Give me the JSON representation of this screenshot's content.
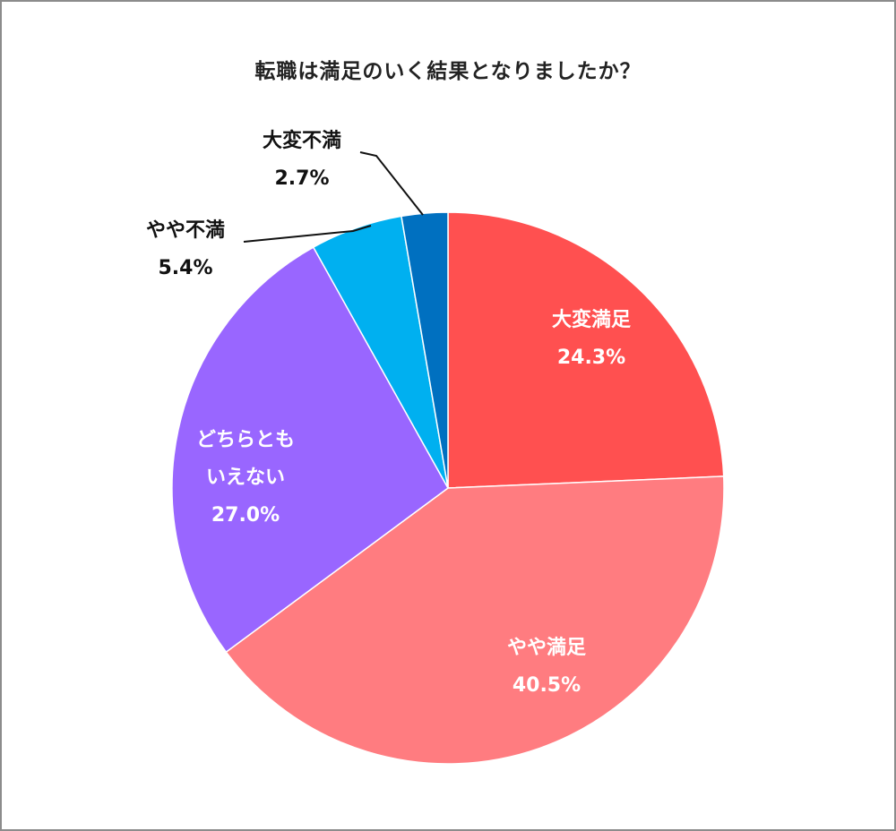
{
  "chart_data": {
    "type": "pie",
    "title": "転職は満足のいく結果となりましたか？",
    "slices": [
      {
        "label": "大変満足",
        "value": 24.3,
        "display": "24.3%",
        "color": "#ff5050",
        "label_color": "#ffffff"
      },
      {
        "label": "やや満足",
        "value": 40.5,
        "display": "40.5%",
        "color": "#ff7c80",
        "label_color": "#ffffff"
      },
      {
        "label": "どちらとも\nいえない",
        "value": 27.0,
        "display": "27.0%",
        "color": "#9966ff",
        "label_color": "#ffffff"
      },
      {
        "label": "やや不満",
        "value": 5.4,
        "display": "5.4%",
        "color": "#00b0f0",
        "label_color": "#111111"
      },
      {
        "label": "大変不満",
        "value": 2.7,
        "display": "2.7%",
        "color": "#0070c0",
        "label_color": "#111111"
      }
    ],
    "start_angle_deg": 0,
    "direction": "clockwise",
    "legend": "none"
  }
}
